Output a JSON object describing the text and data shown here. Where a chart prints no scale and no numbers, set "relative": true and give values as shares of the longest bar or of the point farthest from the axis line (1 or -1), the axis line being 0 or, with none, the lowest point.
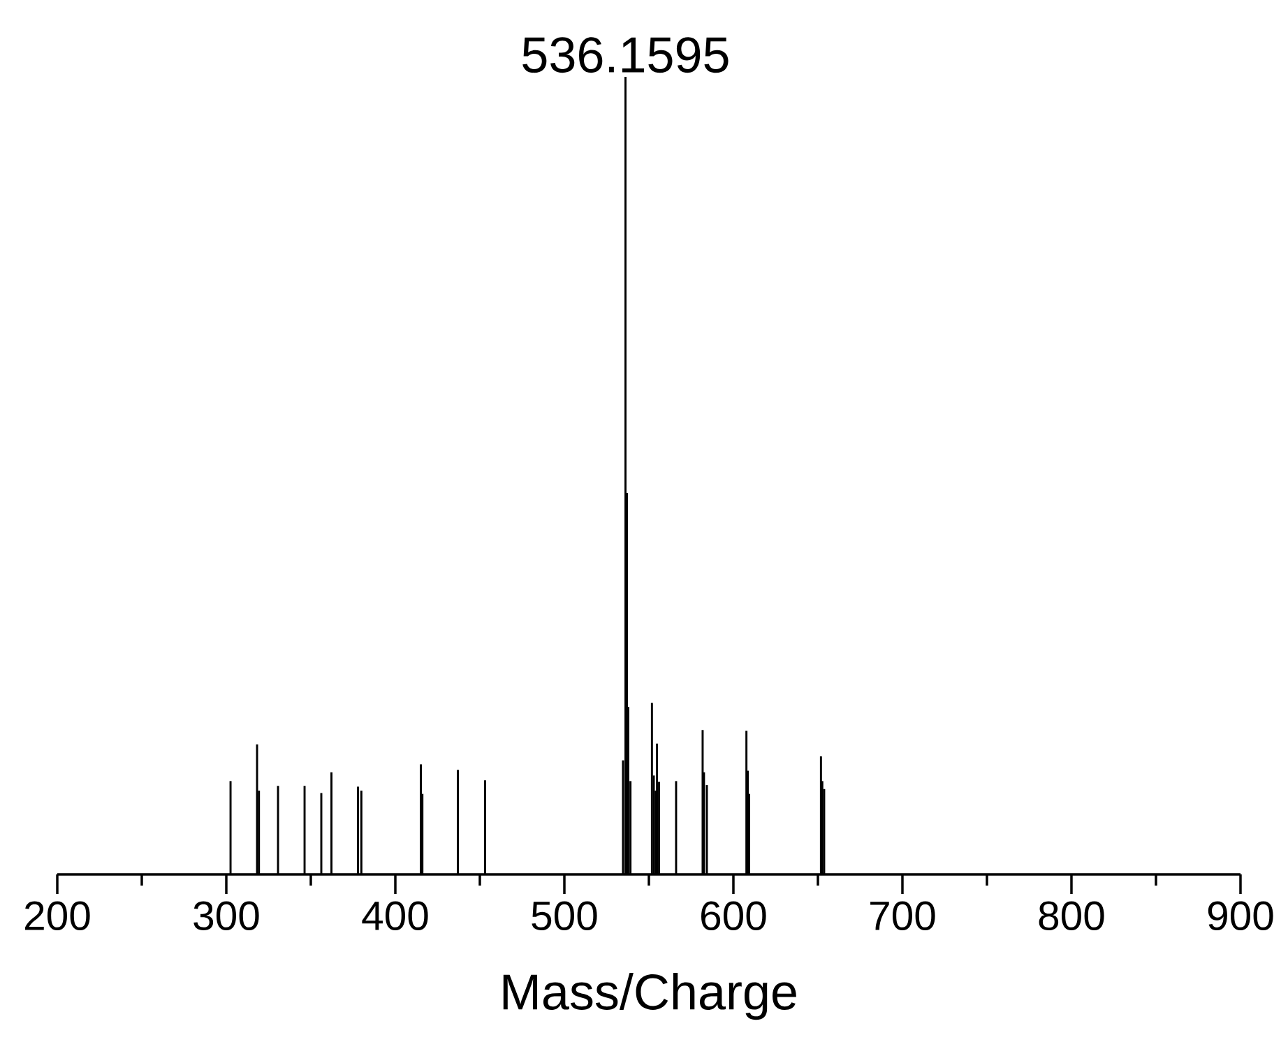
{
  "chart_data": {
    "type": "bar",
    "relative": true,
    "xlabel": "Mass/Charge",
    "x": [
      302.5,
      318.2,
      319.3,
      330.6,
      346.3,
      356.2,
      362.2,
      377.9,
      379.9,
      415.1,
      416.0,
      437.0,
      453.1,
      534.7,
      536.1595,
      537.0,
      537.8,
      539.1,
      551.8,
      552.9,
      554.0,
      554.8,
      556.0,
      566.1,
      581.8,
      582.6,
      584.3,
      607.7,
      608.5,
      609.3,
      651.8,
      652.6,
      653.7
    ],
    "values": [
      0.117,
      0.163,
      0.105,
      0.111,
      0.111,
      0.102,
      0.128,
      0.11,
      0.105,
      0.138,
      0.101,
      0.131,
      0.118,
      0.143,
      1,
      0.478,
      0.21,
      0.117,
      0.215,
      0.124,
      0.105,
      0.164,
      0.116,
      0.117,
      0.181,
      0.128,
      0.112,
      0.18,
      0.13,
      0.101,
      0.148,
      0.117,
      0.107
    ],
    "color": "#000000",
    "xlim": [
      200,
      900
    ],
    "xticks": [
      {
        "value": 200,
        "label": "200"
      },
      {
        "value": 300,
        "label": "300"
      },
      {
        "value": 400,
        "label": "400"
      },
      {
        "value": 500,
        "label": "500"
      },
      {
        "value": 600,
        "label": "600"
      },
      {
        "value": 700,
        "label": "700"
      },
      {
        "value": 800,
        "label": "800"
      },
      {
        "value": 900,
        "label": "900"
      }
    ],
    "tick_labels": "x",
    "annotations": [
      {
        "text": "536.1595",
        "x": 536.1595,
        "y": 1
      }
    ]
  }
}
